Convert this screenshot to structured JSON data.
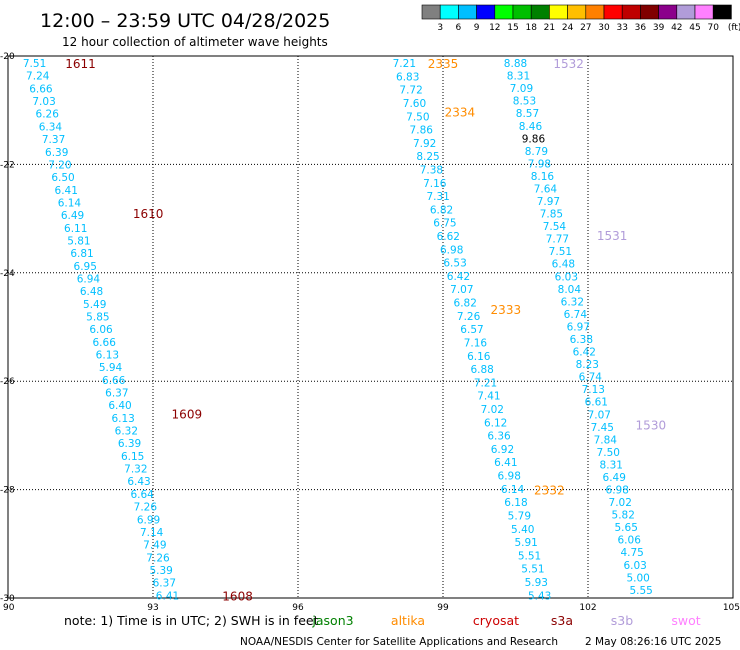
{
  "header": {
    "title": "12:00 – 23:59 UTC 04/28/2025",
    "subtitle": "12 hour collection of altimeter wave heights"
  },
  "colorbar": {
    "unit": "(ft)",
    "levels": [
      "3",
      "6",
      "9",
      "12",
      "15",
      "18",
      "21",
      "24",
      "27",
      "30",
      "33",
      "36",
      "39",
      "42",
      "45",
      "70"
    ],
    "colors": [
      "#808080",
      "#00ffff",
      "#00bfff",
      "#0000ff",
      "#00ff00",
      "#00bf00",
      "#008000",
      "#ffff00",
      "#ffbf00",
      "#ff8000",
      "#ff0000",
      "#bf0000",
      "#800000",
      "#8b008b",
      "#b19cd9",
      "#ff80ff",
      "#000000"
    ]
  },
  "footer": {
    "note": "note:  1) Time is in UTC; 2) SWH is in feet",
    "legend": [
      {
        "name": "jason3",
        "color": "#008000"
      },
      {
        "name": "altika",
        "color": "#ff8c00"
      },
      {
        "name": "cryosat",
        "color": "#cc0000"
      },
      {
        "name": "s3a",
        "color": "#8b0000"
      },
      {
        "name": "s3b",
        "color": "#b19cd9"
      },
      {
        "name": "swot",
        "color": "#ff80ff"
      }
    ],
    "credit": "NOAA/NESDIS Center for Satellite Applications and Research",
    "timestamp": "2 May 08:26:16 UTC 2025"
  },
  "chart_data": {
    "type": "scatter",
    "xlim": [
      90,
      105
    ],
    "ylim": [
      -30,
      -20
    ],
    "x_ticks": [
      "90",
      "93",
      "96",
      "99",
      "102",
      "105"
    ],
    "y_ticks": [
      "-20",
      "-22",
      "-24",
      "-26",
      "-28",
      "-30"
    ],
    "grid": true,
    "tracks": [
      {
        "satellite": "s3a",
        "text_color": "#00bfff",
        "start": [
          90.55,
          -20.13
        ],
        "end": [
          93.3,
          -29.95
        ],
        "values": [
          "7.51",
          "7.24",
          "6.66",
          "7.03",
          "6.26",
          "6.34",
          "7.37",
          "6.39",
          "7.20",
          "6.50",
          "6.41",
          "6.14",
          "6.49",
          "6.11",
          "5.81",
          "6.81",
          "6.95",
          "6.94",
          "6.48",
          "5.49",
          "5.85",
          "6.06",
          "6.66",
          "6.13",
          "5.94",
          "6.66",
          "6.37",
          "6.40",
          "6.13",
          "6.32",
          "6.39",
          "6.15",
          "7.32",
          "6.43",
          "6.64",
          "7.26",
          "6.99",
          "7.14",
          "7.49",
          "7.26",
          "5.39",
          "6.37",
          "6.41"
        ],
        "labels": [
          {
            "text": "1611",
            "x": 91.5,
            "y": -20.13
          },
          {
            "text": "1610",
            "x": 92.9,
            "y": -22.9
          },
          {
            "text": "1609",
            "x": 93.7,
            "y": -26.6
          },
          {
            "text": "1608",
            "x": 94.75,
            "y": -29.95
          }
        ]
      },
      {
        "satellite": "altika",
        "text_color": "#00bfff",
        "start": [
          98.2,
          -20.13
        ],
        "end": [
          101.0,
          -29.95
        ],
        "values": [
          "7.21",
          "6.83",
          "7.72",
          "7.60",
          "7.50",
          "7.86",
          "7.92",
          "8.25",
          "7.38",
          "7.16",
          "7.31",
          "6.82",
          "6.75",
          "6.62",
          "6.98",
          "6.53",
          "6.42",
          "7.07",
          "6.82",
          "7.26",
          "6.57",
          "7.16",
          "6.16",
          "6.88",
          "7.21",
          "7.41",
          "7.02",
          "6.12",
          "6.36",
          "6.92",
          "6.41",
          "6.98",
          "6.14",
          "6.18",
          "5.79",
          "5.40",
          "5.91",
          "5.51",
          "5.51",
          "5.93",
          "5.43"
        ],
        "labels": [
          {
            "text": "2335",
            "x": 99.0,
            "y": -20.13
          },
          {
            "text": "2334",
            "x": 99.35,
            "y": -21.02
          },
          {
            "text": "2333",
            "x": 100.3,
            "y": -24.67
          },
          {
            "text": "2332",
            "x": 101.2,
            "y": -28.0
          }
        ]
      },
      {
        "satellite": "s3b",
        "text_color": "#00bfff",
        "start": [
          100.5,
          -20.13
        ],
        "end": [
          103.1,
          -29.85
        ],
        "values": [
          "8.88",
          "8.31",
          "7.09",
          "8.53",
          "8.57",
          "8.46",
          "9.86",
          "8.79",
          "7.98",
          "8.16",
          "7.64",
          "7.97",
          "7.85",
          "7.54",
          "7.77",
          "7.51",
          "6.48",
          "6.03",
          "8.04",
          "6.32",
          "6.74",
          "6.97",
          "6.38",
          "6.42",
          "8.23",
          "6.74",
          "7.13",
          "6.61",
          "7.07",
          "7.45",
          "7.84",
          "7.50",
          "8.31",
          "6.49",
          "6.98",
          "7.02",
          "5.82",
          "5.65",
          "6.06",
          "4.75",
          "6.03",
          "5.00",
          "5.55"
        ],
        "highlight": {
          "index": 6,
          "color": "#000000"
        },
        "labels": [
          {
            "text": "1532",
            "x": 101.6,
            "y": -20.13
          },
          {
            "text": "1531",
            "x": 102.5,
            "y": -23.3
          },
          {
            "text": "1530",
            "x": 103.3,
            "y": -26.8
          }
        ]
      }
    ]
  }
}
